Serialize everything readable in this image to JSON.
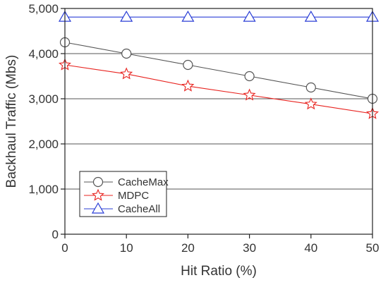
{
  "chart_data": {
    "type": "line",
    "title": "",
    "xlabel": "Hit Ratio (%)",
    "ylabel": "Backhaul Traffic (Mbs)",
    "x": [
      0,
      10,
      20,
      30,
      40,
      50
    ],
    "xlim": [
      0,
      50
    ],
    "ylim": [
      0,
      5000
    ],
    "xticks": [
      "0",
      "10",
      "20",
      "30",
      "40",
      "50"
    ],
    "yticks": [
      "0",
      "1,000",
      "2,000",
      "3,000",
      "4,000",
      "5,000"
    ],
    "grid": "horizontal",
    "legend_position": "bottom-left",
    "series": [
      {
        "name": "CacheMax",
        "values": [
          4250,
          4000,
          3750,
          3500,
          3250,
          3000
        ],
        "color": "#555555",
        "marker": "circle"
      },
      {
        "name": "MDPC",
        "values": [
          3750,
          3550,
          3280,
          3080,
          2880,
          2670
        ],
        "color": "#e8231f",
        "marker": "star"
      },
      {
        "name": "CacheAll",
        "values": [
          4810,
          4810,
          4810,
          4810,
          4810,
          4810
        ],
        "color": "#2b3fd6",
        "marker": "triangle"
      }
    ]
  }
}
